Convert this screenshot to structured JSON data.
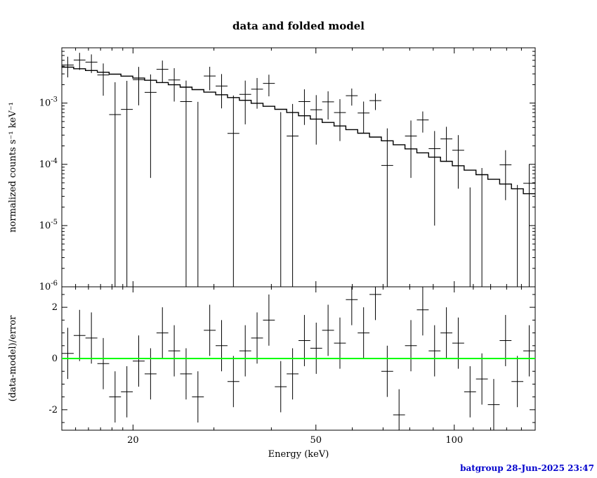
{
  "title": "data and folded model",
  "footer": {
    "text": "batgroup 28-Jun-2025 23:47",
    "color": "#0000CD"
  },
  "chart_data": {
    "type": "scatter",
    "title": "data and folded model",
    "xlabel": "Energy (keV)",
    "xscale": "log",
    "xlim": [
      14,
      150
    ],
    "x_ticks": [
      {
        "value": 20,
        "label": "20"
      },
      {
        "value": 50,
        "label": "50"
      },
      {
        "value": 100,
        "label": "100"
      }
    ],
    "x_minor_ticks": [
      15,
      16,
      17,
      18,
      19,
      30,
      40,
      60,
      70,
      80,
      90,
      110,
      120,
      130,
      140,
      150
    ],
    "panels": [
      {
        "name": "spectrum",
        "ylabel": "normalized counts s⁻¹ keV⁻¹",
        "yscale": "log",
        "ylim": [
          1e-06,
          0.008
        ],
        "y_ticks": [
          {
            "value": 0.001,
            "base": "10",
            "exp": "-3"
          },
          {
            "value": 0.0001,
            "base": "10",
            "exp": "-4"
          },
          {
            "value": 1e-05,
            "base": "10",
            "exp": "-5"
          },
          {
            "value": 1e-06,
            "base": "10",
            "exp": "-6"
          }
        ],
        "series": [
          {
            "name": "data",
            "type": "errorbar-cross",
            "color": "#000000"
          },
          {
            "name": "folded model",
            "type": "step-line",
            "color": "#000000"
          }
        ]
      },
      {
        "name": "residuals",
        "ylabel": "(data-model)/error",
        "yscale": "linear",
        "ylim": [
          -2.8,
          2.8
        ],
        "y_ticks": [
          -2,
          0,
          2
        ],
        "residual_error": 1,
        "zero_line_color": "#00FF00"
      }
    ],
    "bin_edges": [
      14.0,
      14.86,
      15.76,
      16.73,
      17.75,
      18.83,
      19.98,
      21.2,
      22.5,
      23.87,
      25.33,
      26.88,
      28.52,
      30.26,
      32.11,
      34.07,
      36.15,
      38.36,
      40.7,
      43.19,
      45.83,
      48.62,
      51.59,
      54.75,
      58.09,
      61.64,
      65.4,
      69.4,
      73.63,
      78.13,
      82.9,
      87.97,
      93.34,
      99.04,
      105.08,
      111.5,
      118.31,
      125.53,
      133.19,
      141.32,
      149.95
    ],
    "model_values": [
      0.00387,
      0.00364,
      0.00341,
      0.00319,
      0.00297,
      0.00276,
      0.00256,
      0.00236,
      0.00217,
      0.00199,
      0.00182,
      0.00166,
      0.00151,
      0.00137,
      0.00123,
      0.00111,
      0.000994,
      0.000888,
      0.000791,
      0.000702,
      0.000621,
      0.000549,
      0.000483,
      0.000423,
      0.000369,
      0.000322,
      0.000279,
      0.000242,
      0.000209,
      0.000179,
      0.000154,
      0.000131,
      0.000112,
      9.49e-05,
      8.03e-05,
      6.77e-05,
      5.69e-05,
      4.77e-05,
      3.98e-05,
      3.31e-05
    ],
    "data_values": [
      0.00418,
      0.00505,
      0.00467,
      0.00288,
      0.00065,
      0.00079,
      0.00241,
      0.0015,
      0.00356,
      0.00239,
      0.00106,
      -0.00016,
      0.00277,
      0.0019,
      0.00032,
      0.00139,
      0.00169,
      0.0021,
      -2.7e-05,
      0.00029,
      0.00106,
      0.00078,
      0.00105,
      0.0007,
      0.00132,
      0.00069,
      0.0011,
      9.6e-05,
      -0.00036,
      0.00029,
      0.00053,
      0.00018,
      0.00026,
      0.00017,
      -6.8e-05,
      -1.1e-05,
      -9.5e-05,
      9.8e-05,
      -1.5e-05,
      4.9e-05
    ],
    "data_errors": [
      0.00155,
      0.00157,
      0.00157,
      0.00156,
      0.00154,
      0.00152,
      0.00149,
      0.00144,
      0.00139,
      0.00133,
      0.00127,
      0.00121,
      0.00115,
      0.00108,
      0.00101,
      0.00094,
      0.00088,
      0.00081,
      0.00074,
      0.00068,
      0.00062,
      0.00057,
      0.00051,
      0.00046,
      0.00041,
      0.00037,
      0.00033,
      0.00029,
      0.00026,
      0.00023,
      0.0002,
      0.00017,
      0.00015,
      0.00013,
      0.00011,
      9.8e-05,
      8.4e-05,
      7.2e-05,
      6.1e-05,
      5.2e-05
    ],
    "residuals": [
      0.2,
      0.9,
      0.8,
      -0.2,
      -1.5,
      -1.3,
      -0.1,
      -0.6,
      1.0,
      0.3,
      -0.6,
      -1.5,
      1.1,
      0.5,
      -0.9,
      0.3,
      0.8,
      1.5,
      -1.1,
      -0.6,
      0.7,
      0.4,
      1.1,
      0.6,
      2.3,
      1.0,
      2.5,
      -0.5,
      -2.2,
      0.5,
      1.9,
      0.3,
      1.0,
      0.6,
      -1.3,
      -0.8,
      -1.8,
      0.7,
      -0.9,
      0.3
    ]
  }
}
